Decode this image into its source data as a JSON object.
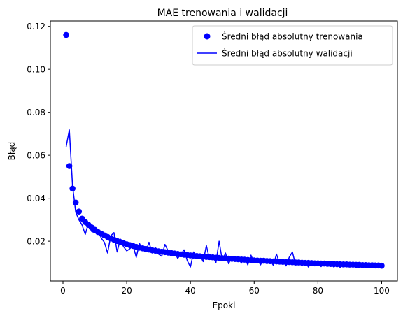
{
  "chart_data": {
    "type": "line",
    "title": "MAE trenowania i walidacji",
    "xlabel": "Epoki",
    "ylabel": "Błąd",
    "xlim": [
      -3.95,
      104.95
    ],
    "ylim": [
      0.0015,
      0.1225
    ],
    "xticks": [
      0,
      20,
      40,
      60,
      80,
      100
    ],
    "yticks": [
      0.02,
      0.04,
      0.06,
      0.08,
      0.1,
      0.12
    ],
    "ytick_labels": [
      "0.02",
      "0.04",
      "0.06",
      "0.08",
      "0.10",
      "0.12"
    ],
    "grid": false,
    "legend_position": "top-right",
    "colors": {
      "series": "#0000ff",
      "axis": "#000000",
      "legend_border": "#cccccc"
    },
    "series": [
      {
        "name": "Średni błąd absolutny trenowania",
        "style": "points",
        "x": [
          1,
          2,
          3,
          4,
          5,
          6,
          7,
          8,
          9,
          10,
          11,
          12,
          13,
          14,
          15,
          16,
          17,
          18,
          19,
          20,
          21,
          22,
          23,
          24,
          25,
          26,
          27,
          28,
          29,
          30,
          31,
          32,
          33,
          34,
          35,
          36,
          37,
          38,
          39,
          40,
          41,
          42,
          43,
          44,
          45,
          46,
          47,
          48,
          49,
          50,
          51,
          52,
          53,
          54,
          55,
          56,
          57,
          58,
          59,
          60,
          61,
          62,
          63,
          64,
          65,
          66,
          67,
          68,
          69,
          70,
          71,
          72,
          73,
          74,
          75,
          76,
          77,
          78,
          79,
          80,
          81,
          82,
          83,
          84,
          85,
          86,
          87,
          88,
          89,
          90,
          91,
          92,
          93,
          94,
          95,
          96,
          97,
          98,
          99,
          100
        ],
        "values": [
          0.116,
          0.055,
          0.0445,
          0.038,
          0.0338,
          0.0305,
          0.0289,
          0.0276,
          0.0264,
          0.0253,
          0.0243,
          0.0235,
          0.0227,
          0.022,
          0.0213,
          0.0207,
          0.0201,
          0.0196,
          0.0191,
          0.0186,
          0.0182,
          0.0178,
          0.0174,
          0.017,
          0.0167,
          0.0164,
          0.0161,
          0.0158,
          0.0156,
          0.0153,
          0.0151,
          0.0149,
          0.0147,
          0.0145,
          0.0143,
          0.0141,
          0.0139,
          0.0137,
          0.0136,
          0.0134,
          0.0133,
          0.0131,
          0.013,
          0.0128,
          0.0127,
          0.0126,
          0.0125,
          0.0123,
          0.0122,
          0.0121,
          0.012,
          0.0119,
          0.0118,
          0.0117,
          0.0116,
          0.0115,
          0.0114,
          0.0113,
          0.0112,
          0.0111,
          0.011,
          0.0109,
          0.0109,
          0.0108,
          0.0107,
          0.0106,
          0.0106,
          0.0105,
          0.0104,
          0.0103,
          0.0103,
          0.0102,
          0.0101,
          0.0101,
          0.01,
          0.0099,
          0.0099,
          0.0098,
          0.0097,
          0.0097,
          0.0096,
          0.0096,
          0.0095,
          0.0094,
          0.0094,
          0.0093,
          0.0093,
          0.0092,
          0.0092,
          0.0091,
          0.0091,
          0.009,
          0.009,
          0.0089,
          0.0089,
          0.0088,
          0.0088,
          0.0087,
          0.0087,
          0.0086
        ]
      },
      {
        "name": "Średni błąd absolutny walidacji",
        "style": "line",
        "x": [
          1,
          2,
          3,
          4,
          5,
          6,
          7,
          8,
          9,
          10,
          11,
          12,
          13,
          14,
          15,
          16,
          17,
          18,
          19,
          20,
          21,
          22,
          23,
          24,
          25,
          26,
          27,
          28,
          29,
          30,
          31,
          32,
          33,
          34,
          35,
          36,
          37,
          38,
          39,
          40,
          41,
          42,
          43,
          44,
          45,
          46,
          47,
          48,
          49,
          50,
          51,
          52,
          53,
          54,
          55,
          56,
          57,
          58,
          59,
          60,
          61,
          62,
          63,
          64,
          65,
          66,
          67,
          68,
          69,
          70,
          71,
          72,
          73,
          74,
          75,
          76,
          77,
          78,
          79,
          80,
          81,
          82,
          83,
          84,
          85,
          86,
          87,
          88,
          89,
          90,
          91,
          92,
          93,
          94,
          95,
          96,
          97,
          98,
          99,
          100
        ],
        "values": [
          0.064,
          0.0718,
          0.046,
          0.0335,
          0.03,
          0.0275,
          0.0232,
          0.0285,
          0.0245,
          0.024,
          0.0255,
          0.0215,
          0.0195,
          0.0145,
          0.0225,
          0.024,
          0.015,
          0.021,
          0.0175,
          0.0155,
          0.0165,
          0.018,
          0.0125,
          0.019,
          0.016,
          0.015,
          0.0195,
          0.0145,
          0.017,
          0.014,
          0.013,
          0.0185,
          0.0155,
          0.0135,
          0.015,
          0.012,
          0.014,
          0.016,
          0.011,
          0.008,
          0.015,
          0.0125,
          0.0135,
          0.0105,
          0.018,
          0.0115,
          0.013,
          0.01,
          0.02,
          0.011,
          0.0145,
          0.0095,
          0.013,
          0.011,
          0.012,
          0.0098,
          0.0125,
          0.009,
          0.0135,
          0.01,
          0.0115,
          0.009,
          0.0118,
          0.0095,
          0.0112,
          0.0088,
          0.014,
          0.0095,
          0.011,
          0.0085,
          0.0125,
          0.015,
          0.009,
          0.0105,
          0.0085,
          0.0108,
          0.008,
          0.01,
          0.0088,
          0.0095,
          0.0082,
          0.0098,
          0.0085,
          0.0092,
          0.008,
          0.009,
          0.0078,
          0.0093,
          0.0082,
          0.0088,
          0.008,
          0.009,
          0.0082,
          0.0086,
          0.008,
          0.0088,
          0.0083,
          0.0085,
          0.0081,
          0.0085
        ]
      }
    ]
  }
}
